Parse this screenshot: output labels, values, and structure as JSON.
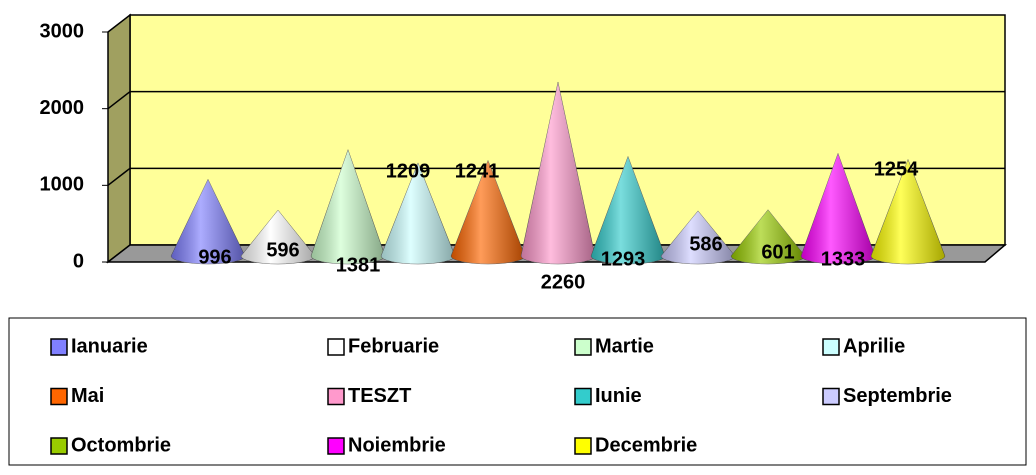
{
  "chart_data": {
    "type": "cone",
    "series": [
      {
        "name": "Ianuarie",
        "color": "#8080ff",
        "values": [
          996
        ]
      },
      {
        "name": "Februarie",
        "color": "#ffffff",
        "values": [
          596
        ]
      },
      {
        "name": "Martie",
        "color": "#ccffcc",
        "values": [
          1381
        ]
      },
      {
        "name": "Aprilie",
        "color": "#ccffff",
        "values": [
          1209
        ]
      },
      {
        "name": "Mai",
        "color": "#ff6600",
        "values": [
          1241
        ]
      },
      {
        "name": "TESZT",
        "color": "#ff99cc",
        "values": [
          2260
        ]
      },
      {
        "name": "Iunie",
        "color": "#33cccc",
        "values": [
          1293
        ]
      },
      {
        "name": "Septembrie",
        "color": "#ccccff",
        "values": [
          586
        ]
      },
      {
        "name": "Octombrie",
        "color": "#99cc00",
        "values": [
          601
        ]
      },
      {
        "name": "Noiembrie",
        "color": "#ff00ff",
        "values": [
          1333
        ]
      },
      {
        "name": "Decembrie",
        "color": "#ffff00",
        "values": [
          1254
        ]
      }
    ],
    "ylim": [
      0,
      3000
    ],
    "yticks": [
      0,
      1000,
      2000,
      3000
    ],
    "grid": true,
    "legend": "bottom"
  }
}
